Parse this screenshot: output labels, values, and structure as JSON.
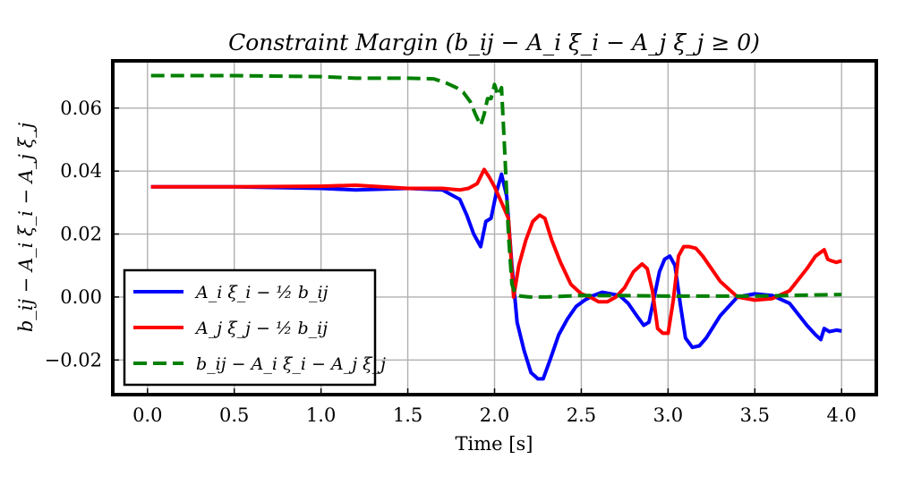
{
  "chart_data": {
    "type": "line",
    "title": "Constraint Margin (b_ij − A_i ξ_i − A_j ξ_j ≥ 0)",
    "xlabel": "Time [s]",
    "ylabel": "b_ij − A_i ξ_i − A_j ξ_j",
    "xlim": [
      -0.2,
      4.2
    ],
    "ylim": [
      -0.031,
      0.075
    ],
    "xticks": [
      0.0,
      0.5,
      1.0,
      1.5,
      2.0,
      2.5,
      3.0,
      3.5,
      4.0
    ],
    "xtick_labels": [
      "0.0",
      "0.5",
      "1.0",
      "1.5",
      "2.0",
      "2.5",
      "3.0",
      "3.5",
      "4.0"
    ],
    "yticks": [
      -0.02,
      0.0,
      0.02,
      0.04,
      0.06
    ],
    "ytick_labels": [
      "−0.02",
      "0.00",
      "0.02",
      "0.04",
      "0.06"
    ],
    "grid": true,
    "legend_position": "lower-left",
    "series": [
      {
        "name": "A_i ξ_i − ½ b_ij",
        "color": "#0000ff",
        "dash": "solid",
        "x": [
          0.02,
          0.5,
          1.0,
          1.2,
          1.5,
          1.7,
          1.8,
          1.84,
          1.88,
          1.92,
          1.95,
          1.98,
          2.01,
          2.04,
          2.07,
          2.1,
          2.13,
          2.17,
          2.21,
          2.25,
          2.28,
          2.32,
          2.37,
          2.42,
          2.47,
          2.52,
          2.57,
          2.62,
          2.67,
          2.72,
          2.77,
          2.82,
          2.86,
          2.89,
          2.92,
          2.95,
          2.98,
          3.01,
          3.04,
          3.07,
          3.1,
          3.14,
          3.18,
          3.22,
          3.3,
          3.4,
          3.5,
          3.6,
          3.7,
          3.8,
          3.85,
          3.88,
          3.9,
          3.93,
          3.97,
          4.0
        ],
        "y": [
          0.035,
          0.035,
          0.0345,
          0.034,
          0.0345,
          0.034,
          0.031,
          0.026,
          0.02,
          0.016,
          0.024,
          0.025,
          0.033,
          0.039,
          0.032,
          0.01,
          -0.008,
          -0.017,
          -0.024,
          -0.026,
          -0.026,
          -0.02,
          -0.012,
          -0.007,
          -0.003,
          -0.001,
          0.0005,
          0.0015,
          0.001,
          0.0005,
          -0.002,
          -0.006,
          -0.009,
          -0.008,
          0.0,
          0.008,
          0.012,
          0.013,
          0.01,
          -0.002,
          -0.013,
          -0.016,
          -0.0155,
          -0.013,
          -0.006,
          0.0,
          0.001,
          0.0005,
          -0.002,
          -0.009,
          -0.012,
          -0.0135,
          -0.01,
          -0.011,
          -0.0105,
          -0.0108
        ]
      },
      {
        "name": "A_j ξ_j − ½ b_ij",
        "color": "#ff0000",
        "dash": "solid",
        "x": [
          0.02,
          0.5,
          1.0,
          1.2,
          1.5,
          1.7,
          1.8,
          1.85,
          1.9,
          1.94,
          1.97,
          2.0,
          2.04,
          2.08,
          2.11,
          2.14,
          2.18,
          2.22,
          2.26,
          2.29,
          2.33,
          2.38,
          2.44,
          2.5,
          2.55,
          2.6,
          2.65,
          2.7,
          2.75,
          2.8,
          2.85,
          2.88,
          2.91,
          2.94,
          2.97,
          3.0,
          3.03,
          3.06,
          3.09,
          3.12,
          3.16,
          3.2,
          3.25,
          3.3,
          3.4,
          3.5,
          3.6,
          3.7,
          3.8,
          3.85,
          3.9,
          3.92,
          3.94,
          3.97,
          4.0
        ],
        "y": [
          0.035,
          0.035,
          0.0352,
          0.0355,
          0.0345,
          0.0345,
          0.034,
          0.0345,
          0.036,
          0.0405,
          0.038,
          0.035,
          0.03,
          0.025,
          0.0,
          0.01,
          0.018,
          0.024,
          0.026,
          0.025,
          0.018,
          0.011,
          0.004,
          0.001,
          0.0,
          -0.0015,
          -0.0015,
          0.0,
          0.003,
          0.008,
          0.0105,
          0.009,
          0.002,
          -0.01,
          -0.0115,
          -0.0115,
          -0.001,
          0.013,
          0.016,
          0.016,
          0.0155,
          0.013,
          0.009,
          0.005,
          0.0,
          -0.001,
          -0.0005,
          0.002,
          0.009,
          0.013,
          0.015,
          0.012,
          0.0115,
          0.011,
          0.0115
        ]
      },
      {
        "name": "b_ij − A_i ξ_i − A_j ξ_j",
        "color": "#008000",
        "dash": "dashed",
        "x": [
          0.02,
          0.5,
          1.0,
          1.2,
          1.5,
          1.65,
          1.72,
          1.78,
          1.82,
          1.86,
          1.89,
          1.92,
          1.94,
          1.96,
          1.98,
          2.0,
          2.02,
          2.04,
          2.06,
          2.08,
          2.1,
          2.12,
          2.15,
          2.2,
          2.3,
          2.5,
          2.7,
          3.0,
          3.5,
          4.0
        ],
        "y": [
          0.0703,
          0.0703,
          0.07,
          0.0695,
          0.0695,
          0.0693,
          0.068,
          0.0665,
          0.065,
          0.062,
          0.058,
          0.0545,
          0.058,
          0.063,
          0.063,
          0.0675,
          0.064,
          0.0665,
          0.045,
          0.02,
          0.004,
          0.001,
          0.0003,
          0.0,
          0.0,
          0.0005,
          0.0005,
          0.0003,
          0.0003,
          0.0008
        ]
      }
    ]
  }
}
